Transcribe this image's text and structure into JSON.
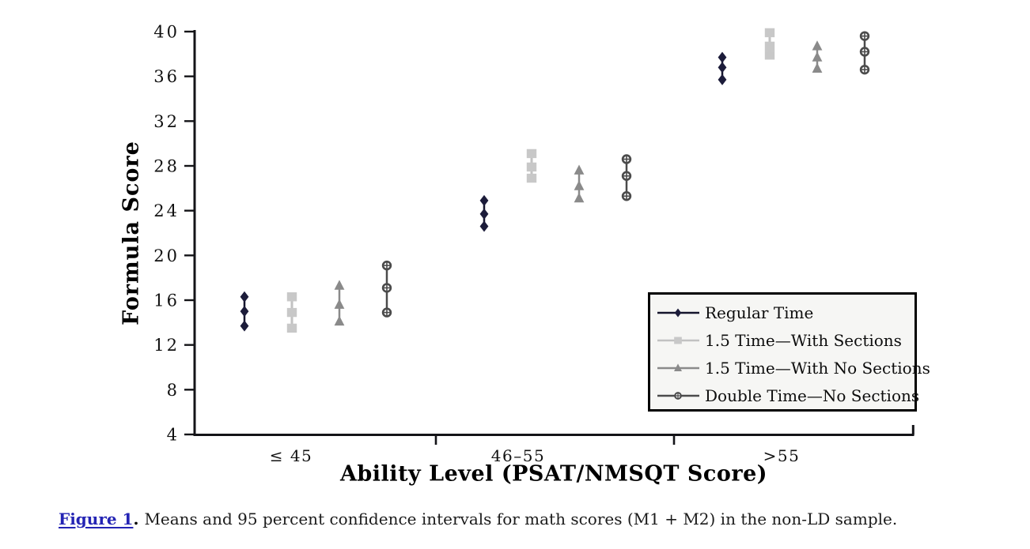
{
  "figure": {
    "caption": {
      "label": "Figure 1",
      "period": ".",
      "text": "Means and 95 percent confidence intervals for math scores (M1 + M2) in the non-LD sample."
    }
  },
  "chart_data": {
    "type": "scatter",
    "title": "",
    "xlabel": "Ability Level (PSAT/NMSQT Score)",
    "ylabel": "Formula Score",
    "ylim": [
      4,
      40
    ],
    "y_ticks": [
      40,
      36,
      32,
      28,
      24,
      20,
      16,
      12,
      8,
      4
    ],
    "categories": [
      "≤ 45",
      "46–55",
      ">55"
    ],
    "grid": false,
    "legend_position": "lower right",
    "error_bar_meaning": "95 percent confidence interval",
    "axis_color": "#141418",
    "series": [
      {
        "name": "Regular Time",
        "marker": "diamond",
        "color": "#1c1c3a",
        "line_color": "#15152c",
        "means": [
          15.0,
          23.7,
          36.8
        ],
        "upper": [
          16.3,
          24.9,
          37.7
        ],
        "lower": [
          13.7,
          22.6,
          35.7
        ]
      },
      {
        "name": "1.5 Time—With Sections",
        "marker": "square",
        "color": "#c8c8c8",
        "line_color": "#c2c2c2",
        "means": [
          14.9,
          27.9,
          38.7
        ],
        "upper": [
          16.3,
          29.1,
          39.9
        ],
        "lower": [
          13.5,
          26.9,
          37.9
        ]
      },
      {
        "name": "1.5 Time—With No Sections",
        "marker": "triangle",
        "color": "#8a8a8a",
        "line_color": "#8a8a8a",
        "means": [
          15.6,
          26.2,
          37.7
        ],
        "upper": [
          17.3,
          27.6,
          38.7
        ],
        "lower": [
          14.1,
          25.1,
          36.7
        ]
      },
      {
        "name": "Double Time—No Sections",
        "marker": "circle-cross",
        "color": "#4b4b4b",
        "line_color": "#4b4b4b",
        "means": [
          17.1,
          27.1,
          38.2
        ],
        "upper": [
          19.1,
          28.6,
          39.6
        ],
        "lower": [
          14.9,
          25.3,
          36.6
        ]
      }
    ]
  }
}
